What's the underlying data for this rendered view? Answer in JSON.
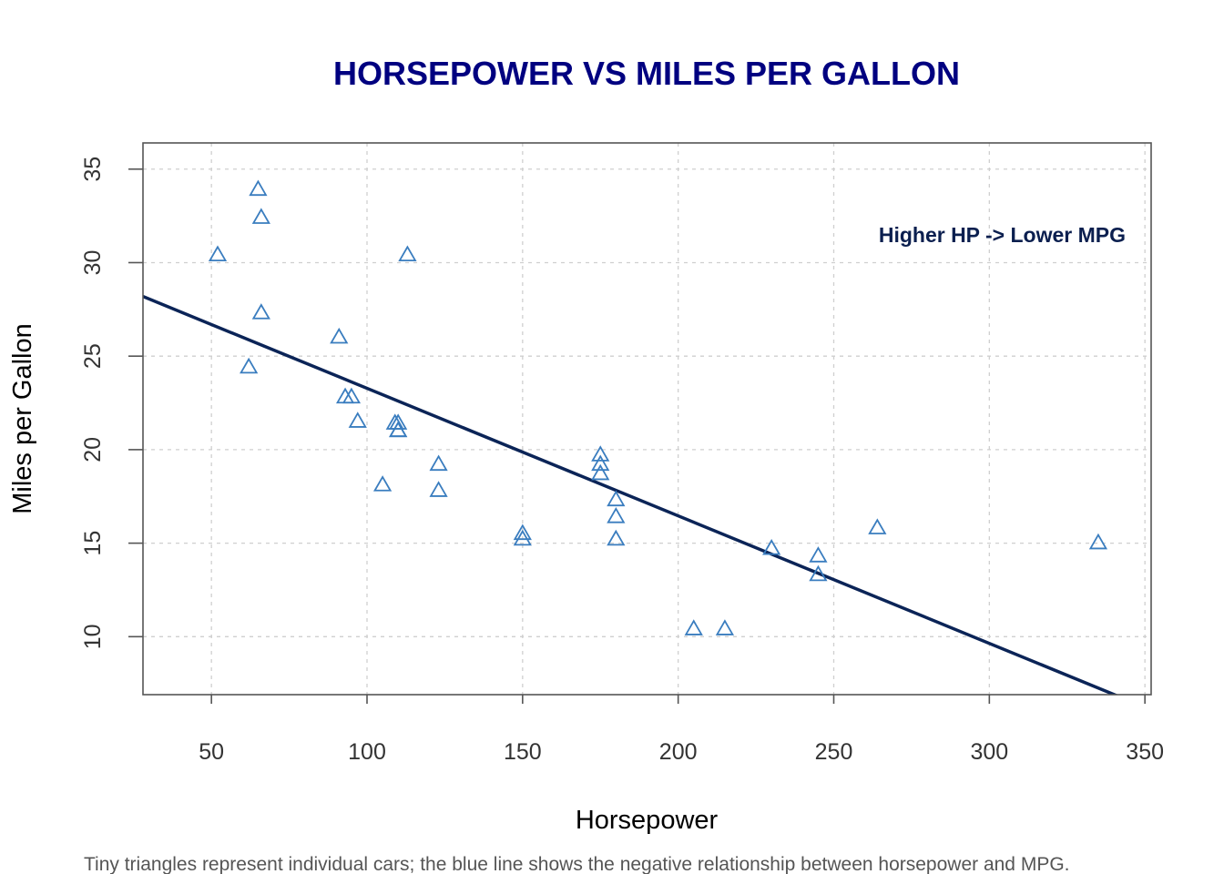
{
  "chart_data": {
    "type": "scatter",
    "title": "HORSEPOWER VS MILES PER GALLON",
    "xlabel": "Horsepower",
    "ylabel": "Miles per Gallon",
    "xlim": [
      28,
      352
    ],
    "ylim": [
      6.9,
      36.4
    ],
    "xticks": [
      50,
      100,
      150,
      200,
      250,
      300,
      350
    ],
    "yticks": [
      10,
      15,
      20,
      25,
      30,
      35
    ],
    "grid": true,
    "annotation": "Higher HP -> Lower MPG",
    "caption": "Tiny triangles represent individual cars; the blue line shows the negative relationship between horsepower and MPG.",
    "marker": "triangle-open",
    "colors": {
      "points": "#3a7dbf",
      "line": "#0b2457",
      "title": "#000080",
      "grid": "#cfcfcf"
    },
    "series": [
      {
        "points": [
          {
            "x": 110,
            "y": 21.0
          },
          {
            "x": 110,
            "y": 21.0
          },
          {
            "x": 93,
            "y": 22.8
          },
          {
            "x": 110,
            "y": 21.4
          },
          {
            "x": 175,
            "y": 18.7
          },
          {
            "x": 105,
            "y": 18.1
          },
          {
            "x": 245,
            "y": 14.3
          },
          {
            "x": 62,
            "y": 24.4
          },
          {
            "x": 95,
            "y": 22.8
          },
          {
            "x": 123,
            "y": 19.2
          },
          {
            "x": 123,
            "y": 17.8
          },
          {
            "x": 180,
            "y": 16.4
          },
          {
            "x": 180,
            "y": 17.3
          },
          {
            "x": 180,
            "y": 15.2
          },
          {
            "x": 205,
            "y": 10.4
          },
          {
            "x": 215,
            "y": 10.4
          },
          {
            "x": 230,
            "y": 14.7
          },
          {
            "x": 66,
            "y": 32.4
          },
          {
            "x": 52,
            "y": 30.4
          },
          {
            "x": 65,
            "y": 33.9
          },
          {
            "x": 97,
            "y": 21.5
          },
          {
            "x": 150,
            "y": 15.5
          },
          {
            "x": 150,
            "y": 15.2
          },
          {
            "x": 245,
            "y": 13.3
          },
          {
            "x": 175,
            "y": 19.2
          },
          {
            "x": 66,
            "y": 27.3
          },
          {
            "x": 91,
            "y": 26.0
          },
          {
            "x": 113,
            "y": 30.4
          },
          {
            "x": 264,
            "y": 15.8
          },
          {
            "x": 175,
            "y": 19.7
          },
          {
            "x": 335,
            "y": 15.0
          },
          {
            "x": 109,
            "y": 21.4
          }
        ]
      }
    ],
    "regression": {
      "intercept": 30.1,
      "slope": -0.0682
    }
  }
}
